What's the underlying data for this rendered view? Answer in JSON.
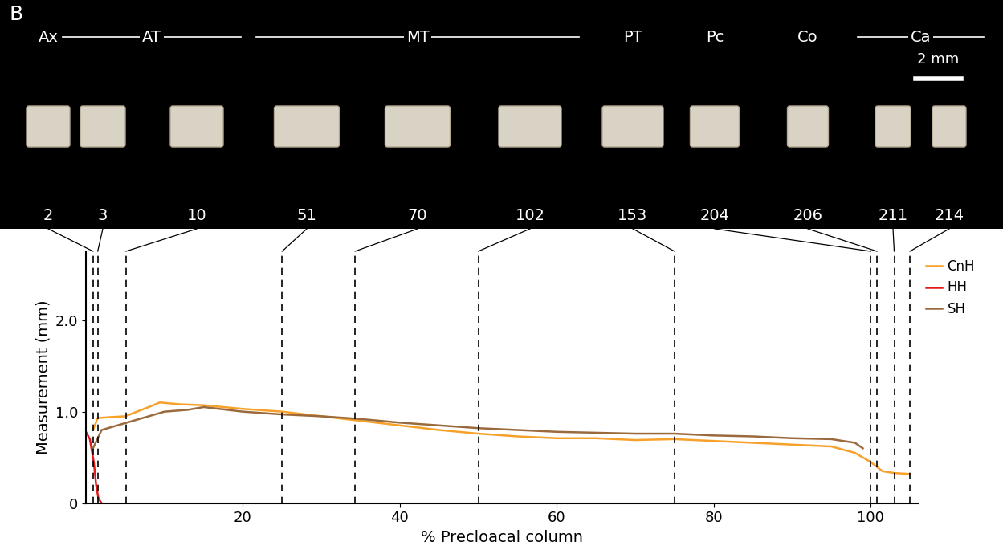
{
  "chart_data": {
    "type": "line",
    "x_label": "% Precloacal column",
    "y_label": "Measurement (mm)",
    "xlim": [
      0,
      106
    ],
    "xticks": [
      20,
      40,
      60,
      80,
      100
    ],
    "ylim": [
      0,
      2.75
    ],
    "yticks": [
      0,
      {
        "value": 1.0,
        "label": "1.0"
      },
      {
        "value": 2.0,
        "label": "2.0"
      }
    ],
    "legend": "right",
    "series": [
      {
        "name": "CnH",
        "color": "#f7a12a",
        "x": [
          0.9,
          1.5,
          3,
          5,
          8,
          9.4,
          12,
          15,
          20,
          25,
          30,
          35,
          40,
          45,
          50,
          55,
          60,
          65,
          70,
          75,
          80,
          85,
          90,
          95,
          98,
          100,
          101.5,
          103,
          105
        ],
        "values": [
          0.8,
          0.93,
          0.94,
          0.95,
          1.05,
          1.1,
          1.08,
          1.07,
          1.03,
          1.0,
          0.95,
          0.9,
          0.85,
          0.8,
          0.76,
          0.73,
          0.71,
          0.71,
          0.69,
          0.7,
          0.68,
          0.66,
          0.64,
          0.62,
          0.55,
          0.45,
          0.35,
          0.33,
          0.32
        ]
      },
      {
        "name": "HH",
        "color": "#e31a1c",
        "x": [
          0,
          0.5,
          1.0,
          1.3,
          1.6,
          2.0
        ],
        "values": [
          0.78,
          0.7,
          0.45,
          0.2,
          0.05,
          0
        ]
      },
      {
        "name": "SH",
        "color": "#9b6a3c",
        "x": [
          0.9,
          2,
          4,
          6,
          8,
          10,
          13,
          15,
          20,
          25,
          30,
          35,
          40,
          45,
          50,
          55,
          60,
          65,
          70,
          75,
          80,
          85,
          90,
          95,
          98,
          99
        ],
        "values": [
          0.6,
          0.8,
          0.85,
          0.9,
          0.95,
          1.0,
          1.02,
          1.05,
          1.0,
          0.97,
          0.95,
          0.92,
          0.88,
          0.85,
          0.82,
          0.8,
          0.78,
          0.77,
          0.76,
          0.76,
          0.74,
          0.73,
          0.71,
          0.7,
          0.66,
          0.6
        ]
      }
    ]
  },
  "figure": {
    "panel_label": "B",
    "scale_bar": "2 mm",
    "regions": [
      {
        "name": "Ax",
        "from": 2,
        "to": 2
      },
      {
        "name": "AT",
        "from": 3,
        "to": 10
      },
      {
        "name": "MT",
        "from": 51,
        "to": 102
      },
      {
        "name": "PT",
        "from": 153,
        "to": 153
      },
      {
        "name": "Pc",
        "from": 204,
        "to": 204
      },
      {
        "name": "Co",
        "from": 206,
        "to": 206
      },
      {
        "name": "Ca",
        "from": 211,
        "to": 214
      }
    ],
    "vertebrae": [
      {
        "number": 2,
        "x": 0.9
      },
      {
        "number": 3,
        "x": 1.5
      },
      {
        "number": 10,
        "x": 5.1
      },
      {
        "number": 51,
        "x": 25
      },
      {
        "number": 70,
        "x": 34.3
      },
      {
        "number": 102,
        "x": 50
      },
      {
        "number": 153,
        "x": 75
      },
      {
        "number": 204,
        "x": 100
      },
      {
        "number": 206,
        "x": 100.8
      },
      {
        "number": 211,
        "x": 103
      },
      {
        "number": 214,
        "x": 105
      }
    ]
  }
}
